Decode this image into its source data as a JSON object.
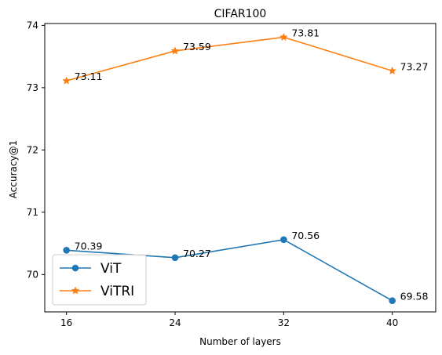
{
  "chart_data": {
    "type": "line",
    "title": "CIFAR100",
    "xlabel": "Number of layers",
    "ylabel": "Accuracy@1",
    "x": [
      16,
      24,
      32,
      40
    ],
    "xticks": [
      16,
      24,
      32,
      40
    ],
    "yticks": [
      70,
      71,
      72,
      73,
      74
    ],
    "xlim": [
      14.4,
      43.2
    ],
    "ylim": [
      69.4,
      74.03
    ],
    "grid": false,
    "legend_position": "lower-left",
    "series": [
      {
        "name": "ViT",
        "values": [
          70.39,
          70.27,
          70.56,
          69.58
        ],
        "labels": [
          "70.39",
          "70.27",
          "70.56",
          "69.58"
        ],
        "color": "#1f77b4",
        "marker": "circle"
      },
      {
        "name": "ViTRI",
        "values": [
          73.11,
          73.59,
          73.81,
          73.27
        ],
        "labels": [
          "73.11",
          "73.59",
          "73.81",
          "73.27"
        ],
        "color": "#ff7f0e",
        "marker": "star"
      }
    ]
  }
}
